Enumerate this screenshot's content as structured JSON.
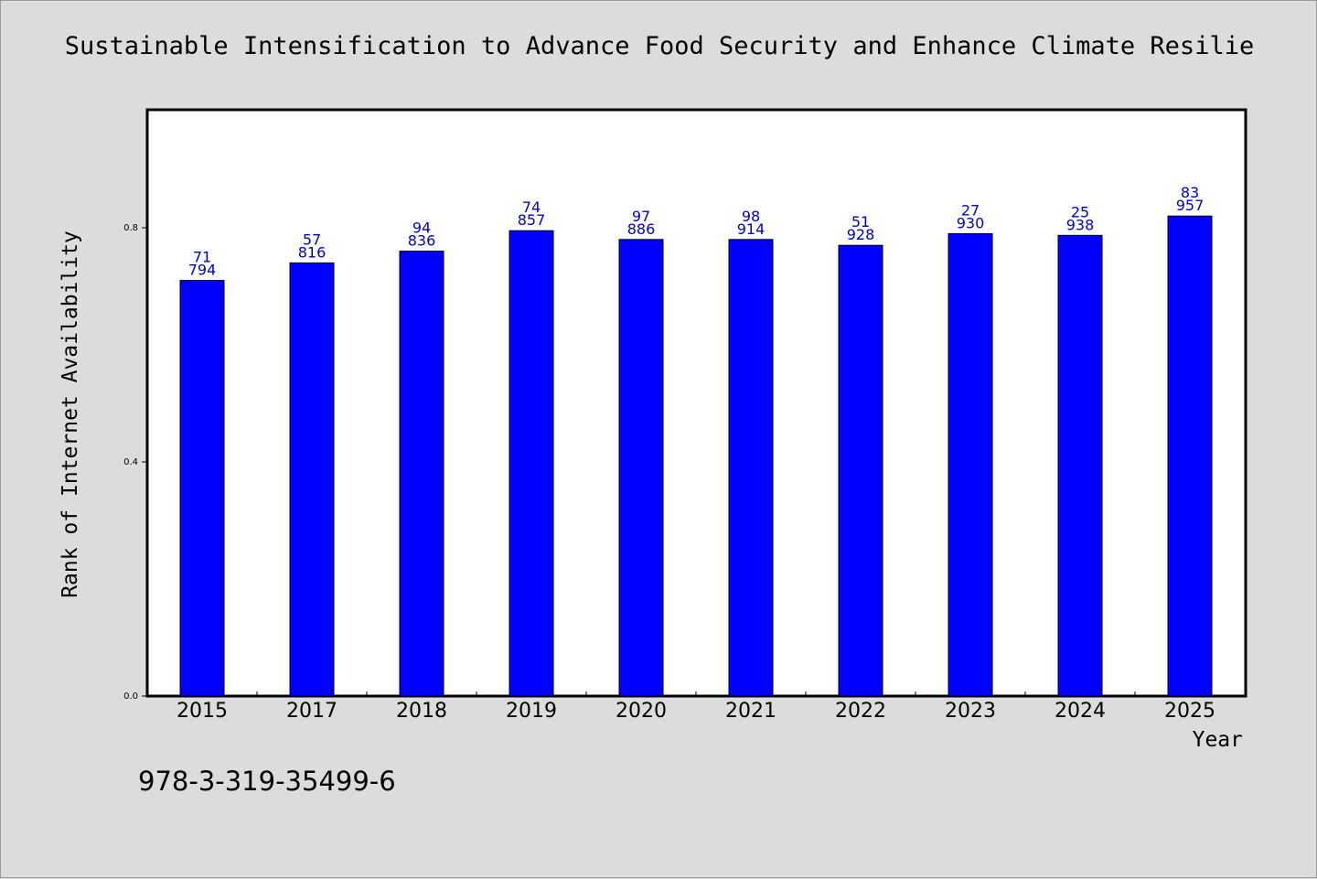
{
  "chart_data": {
    "type": "bar",
    "title": "Sustainable Intensification to Advance Food Security and Enhance Climate Resilie",
    "xlabel": "Year",
    "ylabel": "Rank of Internet Availability",
    "categories": [
      "2015",
      "2017",
      "2018",
      "2019",
      "2020",
      "2021",
      "2022",
      "2023",
      "2024",
      "2025"
    ],
    "values": [
      0.71,
      0.74,
      0.76,
      0.795,
      0.78,
      0.78,
      0.77,
      0.79,
      0.787,
      0.82
    ],
    "bar_labels": [
      [
        "71",
        "794"
      ],
      [
        "57",
        "816"
      ],
      [
        "94",
        "836"
      ],
      [
        "74",
        "857"
      ],
      [
        "97",
        "886"
      ],
      [
        "98",
        "914"
      ],
      [
        "51",
        "928"
      ],
      [
        "27",
        "930"
      ],
      [
        "25",
        "938"
      ],
      [
        "83",
        "957"
      ]
    ],
    "ylim": [
      0,
      1.0
    ],
    "yticks": [
      0.0,
      0.4,
      0.8
    ],
    "ytick_labels": [
      "0.0",
      "0.4",
      "0.8"
    ],
    "grid": false,
    "colors": {
      "bar": "#0000ff",
      "bar_edge": "#000000",
      "bar_label": "#0000cc",
      "background": "#dcdcdc",
      "plot_bg": "#ffffff"
    }
  },
  "footer": {
    "isbn": "978-3-319-35499-6"
  }
}
